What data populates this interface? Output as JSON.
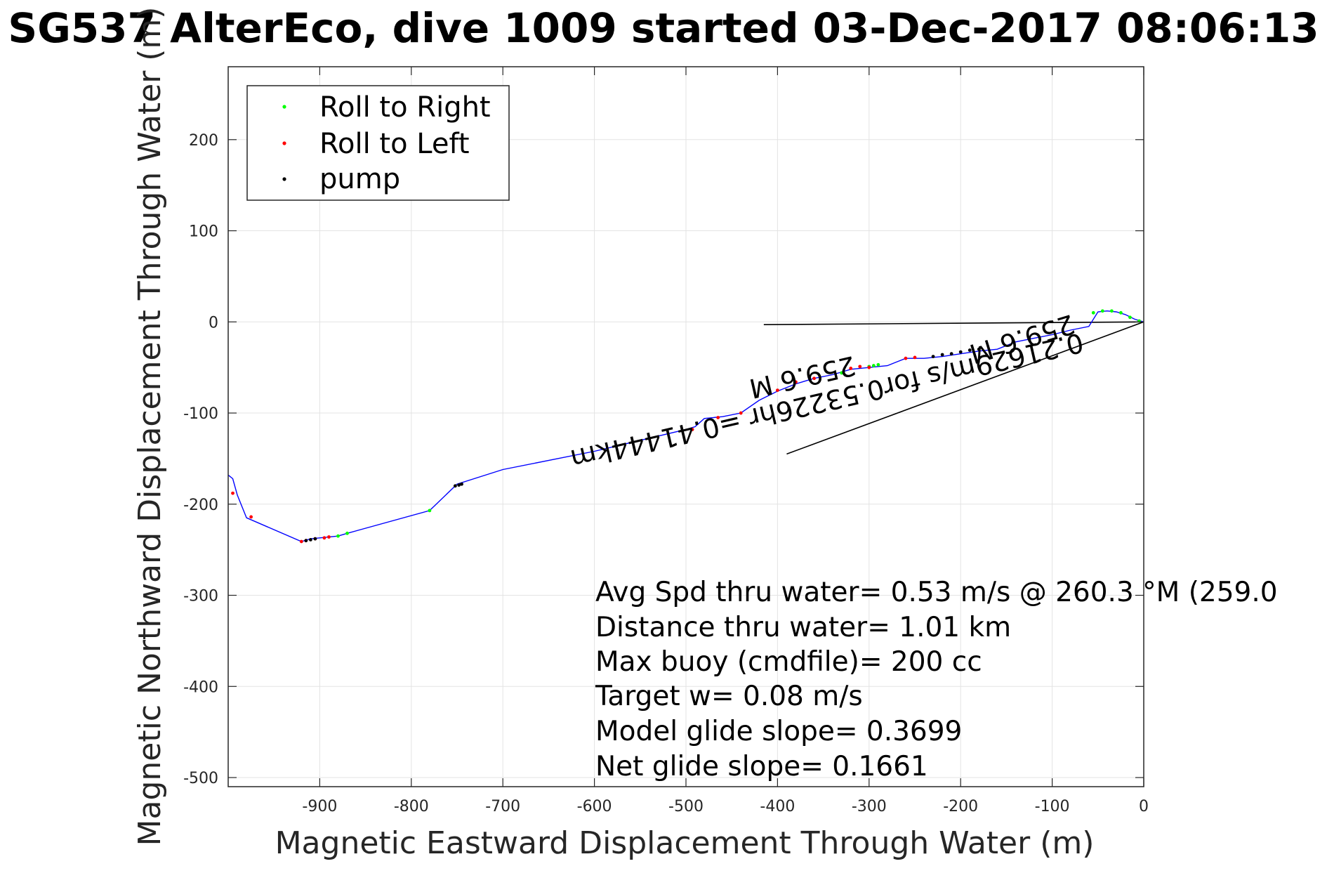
{
  "chart_data": {
    "type": "scatter",
    "title": "SG537 AlterEco, dive 1009 started 03-Dec-2017 08:06:13",
    "xlabel": "Magnetic Eastward Displacement Through Water (m)",
    "ylabel": "Magnetic Northward Displacement Through Water (m)",
    "xlim": [
      -1000,
      0
    ],
    "ylim": [
      -510,
      280
    ],
    "x_ticks": [
      -900,
      -800,
      -700,
      -600,
      -500,
      -400,
      -300,
      -200,
      -100,
      0
    ],
    "y_ticks": [
      200,
      100,
      0,
      -100,
      -200,
      -300,
      -400,
      -500
    ],
    "grid": true,
    "legend_position": "top-left",
    "legend": [
      "Roll to Right",
      "Roll to Left",
      "pump"
    ],
    "series": [
      {
        "name": "track",
        "kind": "line",
        "color": "#0000ff",
        "x": [
          0,
          -10,
          -20,
          -30,
          -40,
          -50,
          -60,
          -80,
          -100,
          -120,
          -140,
          -160,
          -180,
          -200,
          -220,
          -240,
          -260,
          -270,
          -280,
          -300,
          -320,
          -340,
          -360,
          -380,
          -400,
          -420,
          -440,
          -460,
          -480,
          -490,
          -500,
          -600,
          -700,
          -750,
          -780,
          -870,
          -880,
          -900,
          -910,
          -920,
          -980,
          -990,
          -995,
          -1000
        ],
        "y": [
          0,
          3,
          8,
          11,
          12,
          11,
          -5,
          -9,
          -14,
          -18,
          -22,
          -30,
          -32,
          -35,
          -38,
          -40,
          -40,
          -44,
          -48,
          -50,
          -52,
          -58,
          -62,
          -68,
          -76,
          -86,
          -100,
          -104,
          -106,
          -115,
          -118,
          -142,
          -162,
          -178,
          -207,
          -232,
          -235,
          -237,
          -238,
          -241,
          -215,
          -190,
          -172,
          -168
        ]
      },
      {
        "name": "Roll to Right",
        "kind": "points",
        "color": "#00ff00",
        "x": [
          -5,
          -15,
          -25,
          -35,
          -45,
          -55,
          -290,
          -295,
          -300,
          -330,
          -870,
          -880,
          -780
        ],
        "y": [
          1,
          5,
          10,
          12,
          12,
          10,
          -47,
          -48,
          -49,
          -56,
          -232,
          -235,
          -207
        ]
      },
      {
        "name": "Roll to Left",
        "kind": "points",
        "color": "#ff0000",
        "x": [
          -250,
          -260,
          -300,
          -310,
          -320,
          -360,
          -380,
          -400,
          -440,
          -465,
          -493,
          -890,
          -895,
          -905,
          -915,
          -920,
          -975,
          -995
        ],
        "y": [
          -39,
          -40,
          -50,
          -49,
          -51,
          -62,
          -66,
          -75,
          -100,
          -105,
          -118,
          -236,
          -237,
          -238,
          -240,
          -241,
          -214,
          -188
        ]
      },
      {
        "name": "pump",
        "kind": "points",
        "color": "#000000",
        "x": [
          -180,
          -190,
          -200,
          -210,
          -220,
          -230,
          -745,
          -748,
          -752,
          -905,
          -910,
          -915
        ],
        "y": [
          -30,
          -31,
          -33,
          -35,
          -36,
          -38,
          -178,
          -179,
          -180,
          -238,
          -239,
          -240
        ]
      },
      {
        "name": "reference-line-horizontal",
        "kind": "segment",
        "color": "#000000",
        "x": [
          -415,
          0
        ],
        "y": [
          -3,
          0
        ]
      },
      {
        "name": "reference-line-slant",
        "kind": "segment",
        "color": "#000000",
        "x": [
          -390,
          0
        ],
        "y": [
          -145,
          0
        ]
      }
    ],
    "annotations": {
      "stats": [
        "Avg Spd thru water=  0.53 m/s @ 260.3 °M (259.0",
        "Distance thru water=  1.01 km",
        "Max buoy (cmdfile)= 200 cc",
        "Target w= 0.08 m/s",
        "Model glide slope= 0.3699",
        "Net glide slope= 0.1661"
      ],
      "rotated": [
        "259.6 M",
        "0.21629m/s for0.53226hr =0.41444km",
        "259.6 M"
      ]
    }
  }
}
